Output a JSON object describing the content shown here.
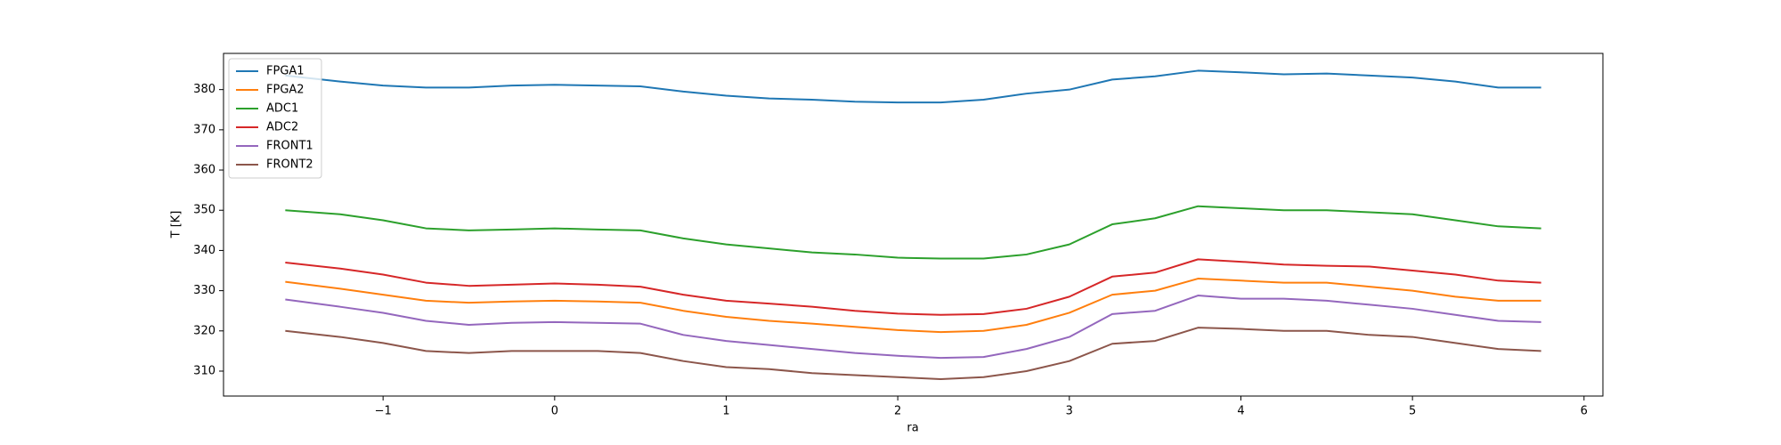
{
  "chart_data": {
    "type": "line",
    "xlabel": "ra",
    "ylabel": "T [K]",
    "x": [
      -1.57,
      -1.25,
      -1,
      -0.75,
      -0.5,
      -0.25,
      0,
      0.25,
      0.5,
      0.75,
      1,
      1.25,
      1.5,
      1.75,
      2,
      2.25,
      2.5,
      2.75,
      3,
      3.25,
      3.5,
      3.75,
      4,
      4.25,
      4.5,
      4.75,
      5,
      5.25,
      5.5,
      5.75
    ],
    "series": [
      {
        "name": "FPGA1",
        "color": "#1f77b4",
        "values": [
          383.5,
          382,
          381,
          380.5,
          380.5,
          381,
          381.2,
          381,
          380.8,
          379.5,
          378.5,
          377.8,
          377.5,
          377,
          376.8,
          376.8,
          377.5,
          379,
          380,
          382.5,
          383.3,
          384.7,
          384.3,
          383.8,
          384,
          383.5,
          383,
          382,
          380.5,
          380.5
        ]
      },
      {
        "name": "FPGA2",
        "color": "#ff7f0e",
        "values": [
          332.2,
          330.5,
          329,
          327.5,
          327,
          327.3,
          327.5,
          327.3,
          327,
          325,
          323.5,
          322.5,
          321.8,
          321,
          320.2,
          319.7,
          320,
          321.5,
          324.5,
          329,
          330,
          333,
          332.5,
          332,
          332,
          331,
          330,
          328.5,
          327.5,
          327.5
        ]
      },
      {
        "name": "ADC1",
        "color": "#2ca02c",
        "values": [
          350,
          349,
          347.5,
          345.5,
          345,
          345.2,
          345.5,
          345.2,
          345,
          343,
          341.5,
          340.5,
          339.5,
          339,
          338.2,
          338,
          338,
          339,
          341.5,
          346.5,
          348,
          351,
          350.5,
          350,
          350,
          349.5,
          349,
          347.5,
          346,
          345.5
        ]
      },
      {
        "name": "ADC2",
        "color": "#d62728",
        "values": [
          337,
          335.5,
          334,
          332,
          331.2,
          331.5,
          331.8,
          331.5,
          331,
          329,
          327.5,
          326.8,
          326,
          325,
          324.3,
          324,
          324.2,
          325.5,
          328.5,
          333.5,
          334.5,
          337.8,
          337.2,
          336.5,
          336.2,
          336,
          335,
          334,
          332.5,
          332
        ]
      },
      {
        "name": "FRONT1",
        "color": "#9467bd",
        "values": [
          327.8,
          326,
          324.5,
          322.5,
          321.5,
          322,
          322.2,
          322,
          321.8,
          319,
          317.5,
          316.5,
          315.5,
          314.5,
          313.8,
          313.3,
          313.5,
          315.5,
          318.5,
          324.2,
          325,
          328.8,
          328,
          328,
          327.5,
          326.5,
          325.5,
          324,
          322.5,
          322.2
        ]
      },
      {
        "name": "FRONT2",
        "color": "#8c564b",
        "values": [
          320,
          318.5,
          317,
          315,
          314.5,
          315,
          315,
          315,
          314.5,
          312.5,
          311,
          310.5,
          309.5,
          309,
          308.5,
          308,
          308.5,
          310,
          312.5,
          316.8,
          317.5,
          320.8,
          320.5,
          320,
          320,
          319,
          318.5,
          317,
          315.5,
          315
        ]
      }
    ],
    "xlim": [
      -1.93,
      6.11
    ],
    "ylim": [
      303.8,
      389.0
    ],
    "xticks": [
      {
        "value": -1,
        "label": "−1"
      },
      0,
      1,
      2,
      3,
      4,
      5,
      6
    ],
    "yticks": [
      310,
      320,
      330,
      340,
      350,
      360,
      370,
      380
    ],
    "grid": false,
    "legend": "upper left"
  }
}
